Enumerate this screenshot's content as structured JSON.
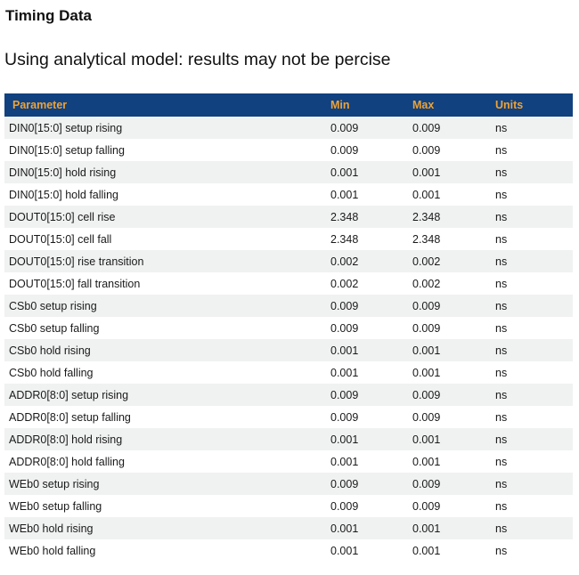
{
  "page": {
    "title": "Timing Data",
    "subtitle": "Using analytical model: results may not be percise"
  },
  "colors": {
    "header_bg": "#11417f",
    "header_text": "#f0a233",
    "row_alt_bg": "#f0f1f1",
    "body_text": "#1a1a1a"
  },
  "table": {
    "columns": [
      "Parameter",
      "Min",
      "Max",
      "Units"
    ],
    "rows": [
      {
        "parameter": "DIN0[15:0] setup rising",
        "min": "0.009",
        "max": "0.009",
        "units": "ns"
      },
      {
        "parameter": "DIN0[15:0] setup falling",
        "min": "0.009",
        "max": "0.009",
        "units": "ns"
      },
      {
        "parameter": "DIN0[15:0] hold rising",
        "min": "0.001",
        "max": "0.001",
        "units": "ns"
      },
      {
        "parameter": "DIN0[15:0] hold falling",
        "min": "0.001",
        "max": "0.001",
        "units": "ns"
      },
      {
        "parameter": "DOUT0[15:0] cell rise",
        "min": "2.348",
        "max": "2.348",
        "units": "ns"
      },
      {
        "parameter": "DOUT0[15:0] cell fall",
        "min": "2.348",
        "max": "2.348",
        "units": "ns"
      },
      {
        "parameter": "DOUT0[15:0] rise transition",
        "min": "0.002",
        "max": "0.002",
        "units": "ns"
      },
      {
        "parameter": "DOUT0[15:0] fall transition",
        "min": "0.002",
        "max": "0.002",
        "units": "ns"
      },
      {
        "parameter": "CSb0 setup rising",
        "min": "0.009",
        "max": "0.009",
        "units": "ns"
      },
      {
        "parameter": "CSb0 setup falling",
        "min": "0.009",
        "max": "0.009",
        "units": "ns"
      },
      {
        "parameter": "CSb0 hold rising",
        "min": "0.001",
        "max": "0.001",
        "units": "ns"
      },
      {
        "parameter": "CSb0 hold falling",
        "min": "0.001",
        "max": "0.001",
        "units": "ns"
      },
      {
        "parameter": "ADDR0[8:0] setup rising",
        "min": "0.009",
        "max": "0.009",
        "units": "ns"
      },
      {
        "parameter": "ADDR0[8:0] setup falling",
        "min": "0.009",
        "max": "0.009",
        "units": "ns"
      },
      {
        "parameter": "ADDR0[8:0] hold rising",
        "min": "0.001",
        "max": "0.001",
        "units": "ns"
      },
      {
        "parameter": "ADDR0[8:0] hold falling",
        "min": "0.001",
        "max": "0.001",
        "units": "ns"
      },
      {
        "parameter": "WEb0 setup rising",
        "min": "0.009",
        "max": "0.009",
        "units": "ns"
      },
      {
        "parameter": "WEb0 setup falling",
        "min": "0.009",
        "max": "0.009",
        "units": "ns"
      },
      {
        "parameter": "WEb0 hold rising",
        "min": "0.001",
        "max": "0.001",
        "units": "ns"
      },
      {
        "parameter": "WEb0 hold falling",
        "min": "0.001",
        "max": "0.001",
        "units": "ns"
      }
    ]
  }
}
